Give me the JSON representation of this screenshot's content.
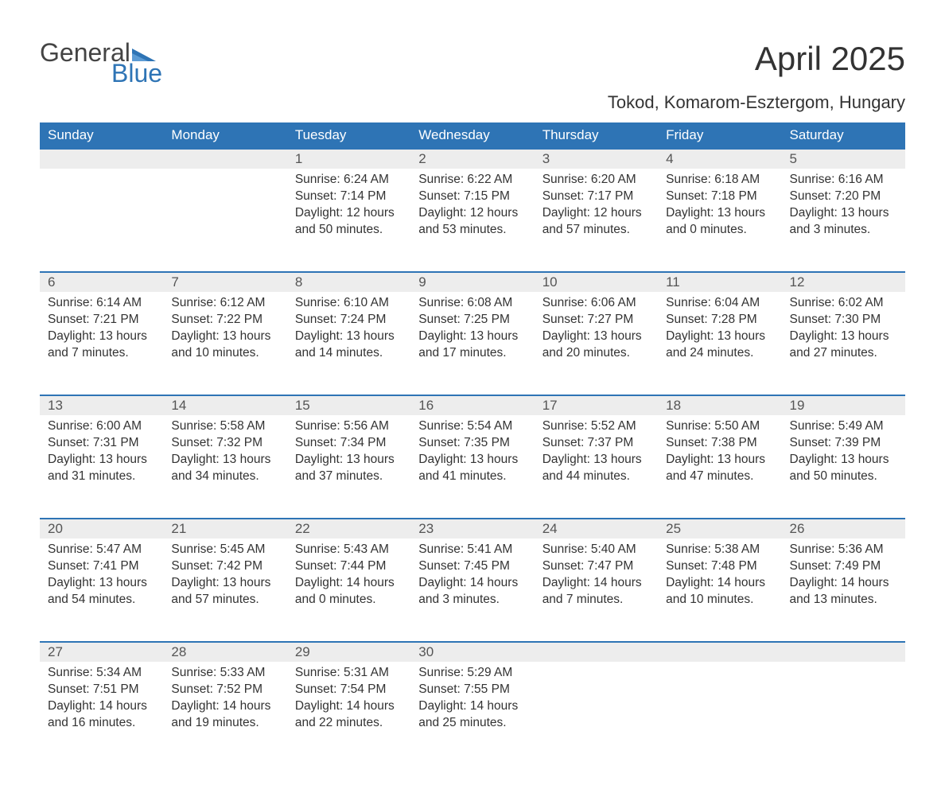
{
  "logo": {
    "word1": "General",
    "word2": "Blue"
  },
  "title": "April 2025",
  "subtitle": "Tokod, Komarom-Esztergom, Hungary",
  "colors": {
    "header_bg": "#2e74b5",
    "header_text": "#ffffff",
    "daynum_bg": "#ededed",
    "daynum_border": "#2e74b5",
    "body_text": "#333333",
    "logo_blue": "#2e74b5"
  },
  "day_headers": [
    "Sunday",
    "Monday",
    "Tuesday",
    "Wednesday",
    "Thursday",
    "Friday",
    "Saturday"
  ],
  "weeks": [
    [
      null,
      null,
      {
        "n": "1",
        "sr": "6:24 AM",
        "ss": "7:14 PM",
        "dl": "12 hours and 50 minutes."
      },
      {
        "n": "2",
        "sr": "6:22 AM",
        "ss": "7:15 PM",
        "dl": "12 hours and 53 minutes."
      },
      {
        "n": "3",
        "sr": "6:20 AM",
        "ss": "7:17 PM",
        "dl": "12 hours and 57 minutes."
      },
      {
        "n": "4",
        "sr": "6:18 AM",
        "ss": "7:18 PM",
        "dl": "13 hours and 0 minutes."
      },
      {
        "n": "5",
        "sr": "6:16 AM",
        "ss": "7:20 PM",
        "dl": "13 hours and 3 minutes."
      }
    ],
    [
      {
        "n": "6",
        "sr": "6:14 AM",
        "ss": "7:21 PM",
        "dl": "13 hours and 7 minutes."
      },
      {
        "n": "7",
        "sr": "6:12 AM",
        "ss": "7:22 PM",
        "dl": "13 hours and 10 minutes."
      },
      {
        "n": "8",
        "sr": "6:10 AM",
        "ss": "7:24 PM",
        "dl": "13 hours and 14 minutes."
      },
      {
        "n": "9",
        "sr": "6:08 AM",
        "ss": "7:25 PM",
        "dl": "13 hours and 17 minutes."
      },
      {
        "n": "10",
        "sr": "6:06 AM",
        "ss": "7:27 PM",
        "dl": "13 hours and 20 minutes."
      },
      {
        "n": "11",
        "sr": "6:04 AM",
        "ss": "7:28 PM",
        "dl": "13 hours and 24 minutes."
      },
      {
        "n": "12",
        "sr": "6:02 AM",
        "ss": "7:30 PM",
        "dl": "13 hours and 27 minutes."
      }
    ],
    [
      {
        "n": "13",
        "sr": "6:00 AM",
        "ss": "7:31 PM",
        "dl": "13 hours and 31 minutes."
      },
      {
        "n": "14",
        "sr": "5:58 AM",
        "ss": "7:32 PM",
        "dl": "13 hours and 34 minutes."
      },
      {
        "n": "15",
        "sr": "5:56 AM",
        "ss": "7:34 PM",
        "dl": "13 hours and 37 minutes."
      },
      {
        "n": "16",
        "sr": "5:54 AM",
        "ss": "7:35 PM",
        "dl": "13 hours and 41 minutes."
      },
      {
        "n": "17",
        "sr": "5:52 AM",
        "ss": "7:37 PM",
        "dl": "13 hours and 44 minutes."
      },
      {
        "n": "18",
        "sr": "5:50 AM",
        "ss": "7:38 PM",
        "dl": "13 hours and 47 minutes."
      },
      {
        "n": "19",
        "sr": "5:49 AM",
        "ss": "7:39 PM",
        "dl": "13 hours and 50 minutes."
      }
    ],
    [
      {
        "n": "20",
        "sr": "5:47 AM",
        "ss": "7:41 PM",
        "dl": "13 hours and 54 minutes."
      },
      {
        "n": "21",
        "sr": "5:45 AM",
        "ss": "7:42 PM",
        "dl": "13 hours and 57 minutes."
      },
      {
        "n": "22",
        "sr": "5:43 AM",
        "ss": "7:44 PM",
        "dl": "14 hours and 0 minutes."
      },
      {
        "n": "23",
        "sr": "5:41 AM",
        "ss": "7:45 PM",
        "dl": "14 hours and 3 minutes."
      },
      {
        "n": "24",
        "sr": "5:40 AM",
        "ss": "7:47 PM",
        "dl": "14 hours and 7 minutes."
      },
      {
        "n": "25",
        "sr": "5:38 AM",
        "ss": "7:48 PM",
        "dl": "14 hours and 10 minutes."
      },
      {
        "n": "26",
        "sr": "5:36 AM",
        "ss": "7:49 PM",
        "dl": "14 hours and 13 minutes."
      }
    ],
    [
      {
        "n": "27",
        "sr": "5:34 AM",
        "ss": "7:51 PM",
        "dl": "14 hours and 16 minutes."
      },
      {
        "n": "28",
        "sr": "5:33 AM",
        "ss": "7:52 PM",
        "dl": "14 hours and 19 minutes."
      },
      {
        "n": "29",
        "sr": "5:31 AM",
        "ss": "7:54 PM",
        "dl": "14 hours and 22 minutes."
      },
      {
        "n": "30",
        "sr": "5:29 AM",
        "ss": "7:55 PM",
        "dl": "14 hours and 25 minutes."
      },
      null,
      null,
      null
    ]
  ],
  "labels": {
    "sunrise": "Sunrise: ",
    "sunset": "Sunset: ",
    "daylight": "Daylight: "
  }
}
